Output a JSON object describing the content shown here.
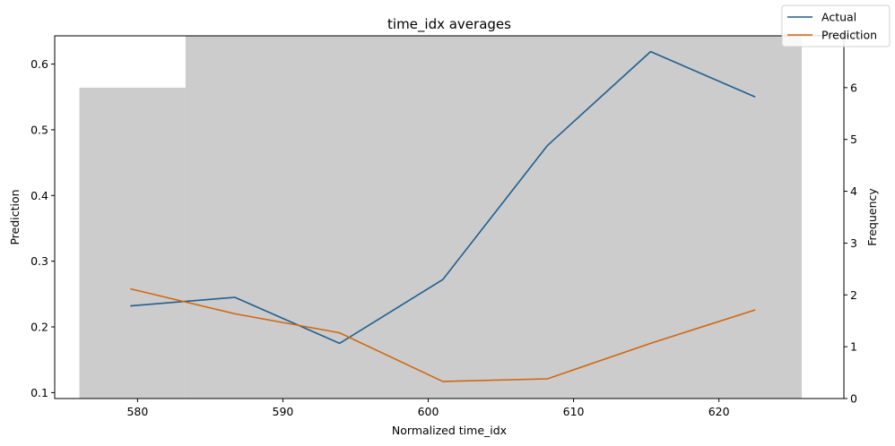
{
  "chart_data": {
    "type": "line",
    "title": "time_idx averages",
    "xlabel": "Normalized time_idx",
    "ylabel": "Prediction",
    "y2label": "Frequency",
    "xlim": [
      574.3,
      628.6
    ],
    "ylim": [
      0.091,
      0.643
    ],
    "y2lim": [
      0,
      7
    ],
    "x_ticks": [
      580,
      590,
      600,
      610,
      620
    ],
    "y_ticks": [
      0.1,
      0.2,
      0.3,
      0.4,
      0.5,
      0.6
    ],
    "y2_ticks": [
      0,
      1,
      2,
      3,
      4,
      5,
      6,
      7
    ],
    "grid": false,
    "legend_position": "top-right",
    "histogram": {
      "color": "#cccccc",
      "bins": [
        {
          "x0": 576.0,
          "x1": 583.3,
          "count": 6
        },
        {
          "x0": 583.3,
          "x1": 625.7,
          "count": 7
        }
      ]
    },
    "series": [
      {
        "name": "Actual",
        "color": "#1f5f8f",
        "x": [
          579.5,
          586.7,
          593.9,
          601.0,
          608.2,
          615.3,
          622.5
        ],
        "y": [
          0.232,
          0.245,
          0.175,
          0.272,
          0.476,
          0.619,
          0.55
        ]
      },
      {
        "name": "Prediction",
        "color": "#d0680f",
        "x": [
          579.5,
          586.7,
          593.9,
          601.0,
          608.2,
          615.3,
          622.5
        ],
        "y": [
          0.258,
          0.22,
          0.191,
          0.117,
          0.121,
          0.175,
          0.226
        ]
      }
    ]
  }
}
